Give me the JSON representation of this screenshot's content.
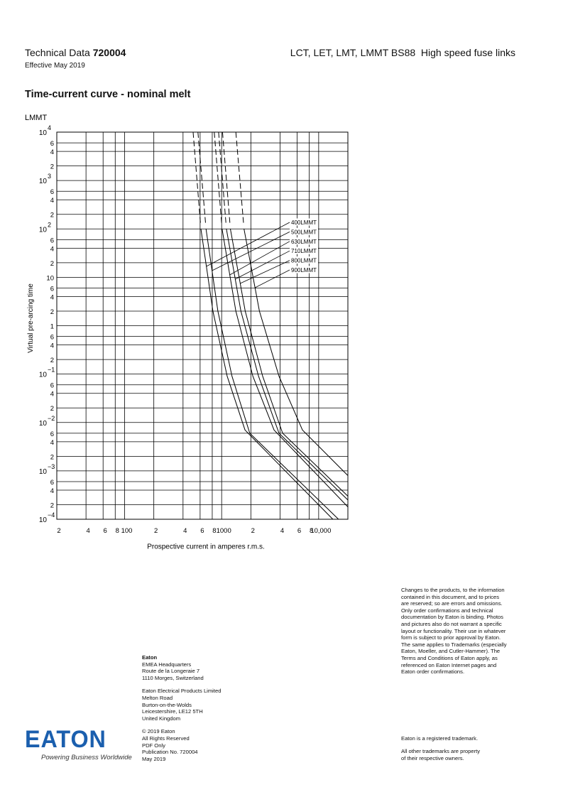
{
  "header": {
    "doc_type": "Technical Data",
    "doc_number": "720004",
    "effective": "Effective May 2019",
    "product": "LCT, LET, LMT, LMMT BS88  High speed fuse links"
  },
  "section_title": "Time-current curve - nominal melt",
  "chart_data": {
    "type": "line",
    "subtitle": "LMMT",
    "x_label": "Prospective current in amperes r.m.s.",
    "y_label": "Virtual pre-arcing time",
    "log_x": true,
    "log_y": true,
    "grid": true,
    "xlim": [
      20,
      20000
    ],
    "ylim": [
      0.0001,
      10000
    ],
    "xticks": [
      {
        "value": 20,
        "label": "2"
      },
      {
        "value": 40,
        "label": "4"
      },
      {
        "value": 60,
        "label": "6"
      },
      {
        "value": 80,
        "label": "8"
      },
      100,
      {
        "value": 200,
        "label": "2"
      },
      {
        "value": 400,
        "label": "4"
      },
      {
        "value": 600,
        "label": "6"
      },
      {
        "value": 800,
        "label": "8"
      },
      1000,
      {
        "value": 2000,
        "label": "2"
      },
      {
        "value": 4000,
        "label": "4"
      },
      {
        "value": 6000,
        "label": "6"
      },
      {
        "value": 8000,
        "label": "8"
      },
      {
        "value": 10000,
        "label": "10,000"
      }
    ],
    "yticks": [
      {
        "value": 0.0001,
        "label": "10",
        "exponent": "−4"
      },
      {
        "value": 0.0002,
        "label": "2"
      },
      {
        "value": 0.0004,
        "label": "4"
      },
      {
        "value": 0.0006,
        "label": "6"
      },
      {
        "value": 0.001,
        "label": "10",
        "exponent": "−3"
      },
      {
        "value": 0.002,
        "label": "2"
      },
      {
        "value": 0.004,
        "label": "4"
      },
      {
        "value": 0.006,
        "label": "6"
      },
      {
        "value": 0.01,
        "label": "10",
        "exponent": "−2"
      },
      {
        "value": 0.02,
        "label": "2"
      },
      {
        "value": 0.04,
        "label": "4"
      },
      {
        "value": 0.06,
        "label": "6"
      },
      {
        "value": 0.1,
        "label": "10",
        "exponent": "−1"
      },
      {
        "value": 0.2,
        "label": "2"
      },
      {
        "value": 0.4,
        "label": "4"
      },
      {
        "value": 0.6,
        "label": "6"
      },
      1,
      2,
      4,
      6,
      10,
      {
        "value": 20,
        "label": "2"
      },
      {
        "value": 40,
        "label": "4"
      },
      {
        "value": 60,
        "label": "6"
      },
      {
        "value": 100,
        "label": "10",
        "exponent": "2"
      },
      {
        "value": 200,
        "label": "2"
      },
      {
        "value": 400,
        "label": "4"
      },
      {
        "value": 600,
        "label": "6"
      },
      {
        "value": 1000,
        "label": "10",
        "exponent": "3"
      },
      {
        "value": 2000,
        "label": "2"
      },
      {
        "value": 4000,
        "label": "4"
      },
      {
        "value": 6000,
        "label": "6"
      },
      {
        "value": 10000,
        "label": "10",
        "exponent": "4"
      }
    ],
    "series": [
      {
        "name": "400LMMT",
        "color": "#000000",
        "x": [
          508,
          611,
          813,
          1140,
          1740,
          14000
        ],
        "values": [
          10000,
          100,
          2,
          0.09,
          0.007,
          0.0001
        ]
      },
      {
        "name": "500LMMT",
        "color": "#000000",
        "x": [
          570,
          690,
          915,
          1280,
          1950,
          16000
        ],
        "values": [
          10000,
          100,
          2,
          0.09,
          0.006,
          0.0001
        ]
      },
      {
        "name": "630LMMT",
        "color": "#000000",
        "x": [
          840,
          1010,
          1400,
          2100,
          3470,
          20000
        ],
        "values": [
          10000,
          100,
          2,
          0.09,
          0.007,
          0.00018
        ]
      },
      {
        "name": "710LMMT",
        "color": "#000000",
        "x": [
          930,
          1120,
          1580,
          2400,
          3900,
          20000
        ],
        "values": [
          10000,
          100,
          2,
          0.09,
          0.006,
          0.00025
        ]
      },
      {
        "name": "800LMMT",
        "color": "#000000",
        "x": [
          1020,
          1230,
          1750,
          2650,
          4250,
          20000
        ],
        "values": [
          10000,
          100,
          2,
          0.09,
          0.006,
          0.0003
        ]
      },
      {
        "name": "900LMMT",
        "color": "#000000",
        "x": [
          1400,
          1700,
          2450,
          3900,
          6800,
          20000
        ],
        "values": [
          10000,
          100,
          2,
          0.09,
          0.007,
          0.0008
        ]
      }
    ]
  },
  "footer": {
    "company": "Eaton",
    "hq": [
      "EMEA Headquarters",
      "Route de la Longeraie 7",
      "1110 Morges, Switzerland"
    ],
    "uk": [
      "Eaton Electrical Products Limited",
      "Melton Road",
      "Burton-on-the-Wolds",
      "Leicestershire, LE12 5TH",
      "United Kingdom"
    ],
    "pub": [
      "© 2019 Eaton",
      "All Rights Reserved",
      "PDF Only",
      "Publication No. 720004",
      "May 2019"
    ],
    "disclaimer": [
      "Changes to the products, to the information",
      "contained in this document, and to prices",
      "are reserved; so are errors and omissions.",
      "Only order confirmations and technical",
      "documentation by Eaton is binding. Photos",
      "and pictures also do not warrant a specific",
      "layout or functionality. Their use in whatever",
      "form is subject to prior approval by Eaton.",
      "The same applies to Trademarks (especially",
      "Eaton, Moeller, and Cutler-Hammer). The",
      "Terms and Conditions of Eaton apply, as",
      "referenced on Eaton Internet pages and",
      "Eaton order confirmations."
    ],
    "trademark": "Eaton is a registered trademark.",
    "other_trademarks": [
      "All other trademarks are property",
      "of their respective owners."
    ],
    "logo": "EATON",
    "tagline": "Powering Business Worldwide"
  }
}
